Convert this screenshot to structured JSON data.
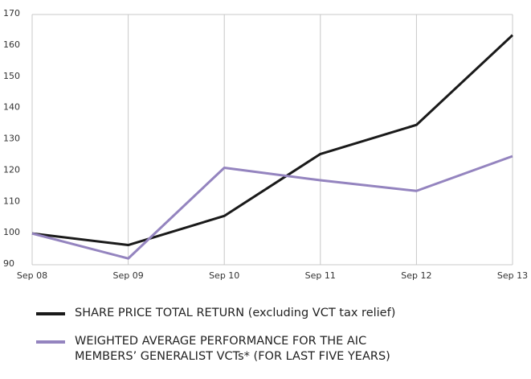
{
  "chart_data": {
    "type": "line",
    "categories": [
      "Sep 08",
      "Sep 09",
      "Sep 10",
      "Sep 11",
      "Sep 12",
      "Sep 13"
    ],
    "series": [
      {
        "name": "SHARE PRICE TOTAL RETURN (excluding VCT tax relief)",
        "color": "#1a1a1a",
        "values": [
          100,
          96.3,
          105.6,
          125.4,
          134.7,
          163.4
        ]
      },
      {
        "name": "WEIGHTED AVERAGE PERFORMANCE FOR THE AIC\nMEMBERS’ GENERALIST VCTs* (FOR LAST FIVE YEARS)",
        "color": "#9484bf",
        "values": [
          100,
          92,
          121,
          117,
          113.6,
          124.7
        ]
      }
    ],
    "ylim": [
      90,
      170
    ],
    "yticks": [
      90,
      100,
      110,
      120,
      130,
      140,
      150,
      160,
      170
    ],
    "grid": true
  }
}
